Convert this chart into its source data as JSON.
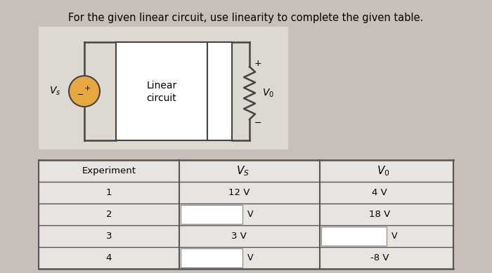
{
  "title": "For the given linear circuit, use linearity to complete the given table.",
  "title_fontsize": 10.5,
  "background_color": "#c8c0b8",
  "table_bg": "#e8e4e0",
  "table": {
    "rows": [
      {
        "exp": "1",
        "vs": "12 V",
        "vs_blank": false,
        "vo": "4 V",
        "vo_blank": false
      },
      {
        "exp": "2",
        "vs": "",
        "vs_blank": true,
        "vo": "18 V",
        "vo_blank": false
      },
      {
        "exp": "3",
        "vs": "3 V",
        "vs_blank": false,
        "vo": "",
        "vo_blank": true
      },
      {
        "exp": "4",
        "vs": "",
        "vs_blank": true,
        "vo": "-8 V",
        "vo_blank": false
      }
    ]
  },
  "circuit": {
    "vs_label": "$V_s$",
    "box_labels": [
      "Linear",
      "circuit"
    ],
    "vo_label": "$V_0$"
  }
}
